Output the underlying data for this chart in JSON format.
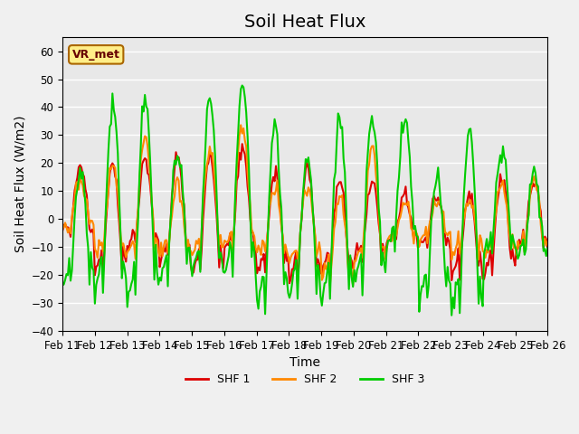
{
  "title": "Soil Heat Flux",
  "ylabel": "Soil Heat Flux (W/m2)",
  "xlabel": "Time",
  "ylim": [
    -40,
    65
  ],
  "yticks": [
    -40,
    -30,
    -20,
    -10,
    0,
    10,
    20,
    30,
    40,
    50,
    60
  ],
  "date_labels": [
    "Feb 11",
    "Feb 12",
    "Feb 13",
    "Feb 14",
    "Feb 15",
    "Feb 16",
    "Feb 17",
    "Feb 18",
    "Feb 19",
    "Feb 20",
    "Feb 21",
    "Feb 22",
    "Feb 23",
    "Feb 24",
    "Feb 25",
    "Feb 26"
  ],
  "color_shf1": "#dd0000",
  "color_shf2": "#ff8800",
  "color_shf3": "#00cc00",
  "legend_labels": [
    "SHF 1",
    "SHF 2",
    "SHF 3"
  ],
  "annotation_text": "VR_met",
  "annotation_box_color": "#ffee88",
  "annotation_box_edge": "#aa6600",
  "bg_color": "#e8e8e8",
  "grid_color": "#ffffff",
  "title_fontsize": 14,
  "label_fontsize": 10,
  "tick_fontsize": 8.5,
  "line_width": 1.5,
  "n_days": 15
}
